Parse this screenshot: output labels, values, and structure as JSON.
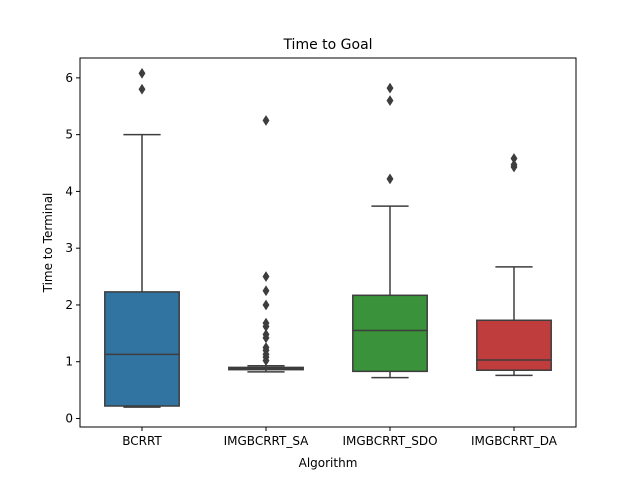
{
  "chart_data": {
    "type": "box",
    "title": "Time to Goal",
    "xlabel": "Algorithm",
    "ylabel": "Time to Terminal",
    "ylim": [
      -0.15,
      6.35
    ],
    "yticks": [
      0,
      1,
      2,
      3,
      4,
      5,
      6
    ],
    "categories": [
      "BCRRT",
      "IMGBCRRT_SA",
      "IMGBCRRT_SDO",
      "IMGBCRRT_DA"
    ],
    "colors": [
      "#3274a1",
      "#3274a1",
      "#3a923a",
      "#c03d3e"
    ],
    "boxes": [
      {
        "whisker_low": 0.2,
        "q1": 0.22,
        "median": 1.13,
        "q3": 2.23,
        "whisker_high": 5.0,
        "outliers": [
          5.8,
          6.08
        ]
      },
      {
        "whisker_low": 0.82,
        "q1": 0.86,
        "median": 0.88,
        "q3": 0.9,
        "whisker_high": 0.93,
        "outliers": [
          1.02,
          1.08,
          1.13,
          1.2,
          1.25,
          1.42,
          1.48,
          1.62,
          1.68,
          2.0,
          2.25,
          2.5,
          5.25
        ]
      },
      {
        "whisker_low": 0.72,
        "q1": 0.83,
        "median": 1.55,
        "q3": 2.17,
        "whisker_high": 3.74,
        "outliers": [
          4.22,
          5.6,
          5.82
        ]
      },
      {
        "whisker_low": 0.76,
        "q1": 0.85,
        "median": 1.03,
        "q3": 1.73,
        "whisker_high": 2.67,
        "outliers": [
          4.43,
          4.47,
          4.58
        ]
      }
    ]
  }
}
